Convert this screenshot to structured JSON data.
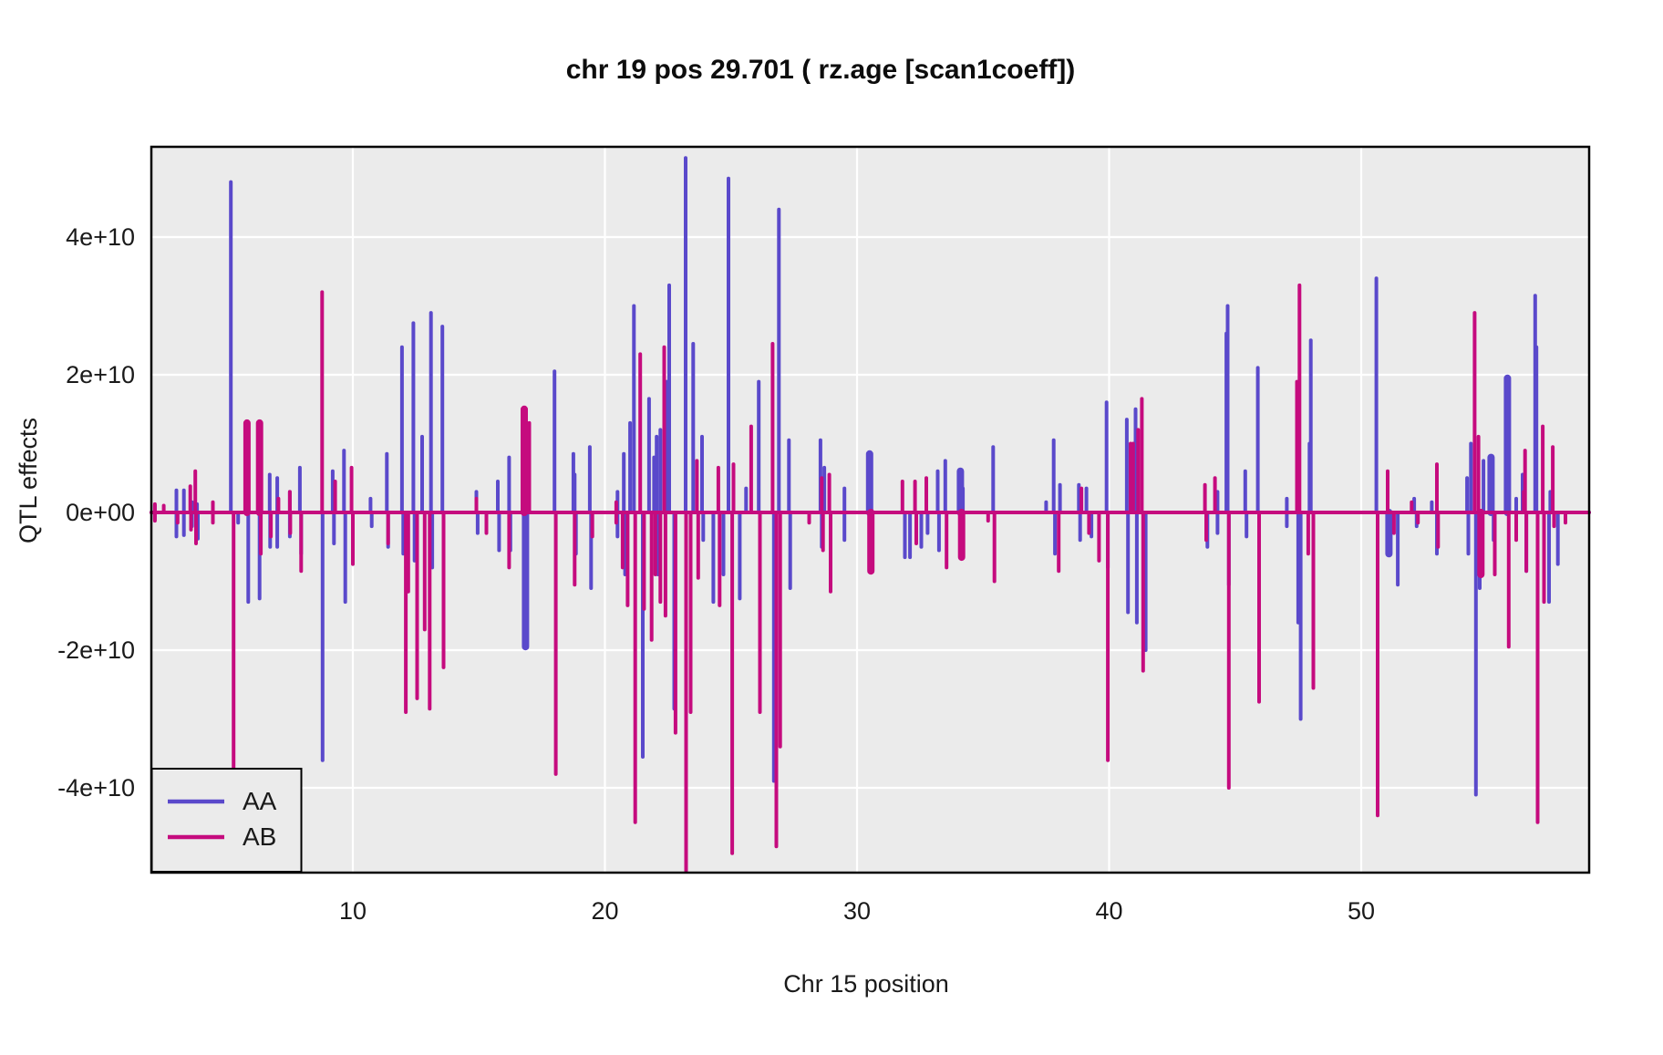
{
  "chart_data": {
    "type": "line",
    "title": "chr 19 pos 29.701 ( rz.age  [scan1coeff])",
    "xlabel": "Chr 15 position",
    "ylabel": "QTL effects",
    "xlim": [
      2.0,
      59.0
    ],
    "ylim_e10": [
      -5.23,
      5.31
    ],
    "x_ticks": [
      10,
      20,
      30,
      40,
      50
    ],
    "y_ticks": [
      {
        "label": "4e+10",
        "value_e10": 4
      },
      {
        "label": "2e+10",
        "value_e10": 2
      },
      {
        "label": "0e+00",
        "value_e10": 0
      },
      {
        "label": "-2e+10",
        "value_e10": -2
      },
      {
        "label": "-4e+10",
        "value_e10": -4
      }
    ],
    "grid": "major gridlines only, white on gray panel",
    "legend_position": "bottom-left inside panel",
    "panel_bg": "#EBEBEB",
    "grid_color": "#FFFFFF",
    "border_color": "#000000",
    "text_color": "#1a1a1a",
    "baseline_e10": 0,
    "series": [
      {
        "name": "AA",
        "color": "#5A49CB",
        "spikes_e10": [
          [
            2.15,
            0.1
          ],
          [
            2.15,
            -0.1
          ],
          [
            3.0,
            0.32
          ],
          [
            3.0,
            -0.35
          ],
          [
            3.3,
            0.32
          ],
          [
            3.3,
            -0.33
          ],
          [
            3.62,
            0.15
          ],
          [
            3.62,
            -0.2
          ],
          [
            3.82,
            0.12
          ],
          [
            3.85,
            -0.38
          ],
          [
            5.16,
            4.8
          ],
          [
            5.45,
            -0.15
          ],
          [
            5.85,
            -1.3
          ],
          [
            6.3,
            -1.25
          ],
          [
            6.7,
            0.55
          ],
          [
            6.72,
            -0.5
          ],
          [
            7.0,
            0.5
          ],
          [
            7.0,
            -0.5
          ],
          [
            7.5,
            0.3
          ],
          [
            7.5,
            -0.35
          ],
          [
            7.9,
            0.65
          ],
          [
            7.95,
            -0.6
          ],
          [
            8.8,
            -3.6
          ],
          [
            9.2,
            0.6
          ],
          [
            9.25,
            -0.45
          ],
          [
            9.65,
            0.9
          ],
          [
            9.7,
            -1.3
          ],
          [
            10.7,
            0.2
          ],
          [
            10.75,
            -0.2
          ],
          [
            11.35,
            0.85
          ],
          [
            11.4,
            -0.5
          ],
          [
            11.95,
            2.4
          ],
          [
            12.0,
            -0.6
          ],
          [
            12.4,
            2.75
          ],
          [
            12.45,
            -0.7
          ],
          [
            12.75,
            1.1
          ],
          [
            13.1,
            2.9
          ],
          [
            13.15,
            -0.8
          ],
          [
            13.55,
            2.7
          ],
          [
            14.9,
            0.3
          ],
          [
            14.95,
            -0.3
          ],
          [
            15.75,
            0.45
          ],
          [
            15.8,
            -0.55
          ],
          [
            16.2,
            0.8
          ],
          [
            16.25,
            -0.55
          ],
          [
            16.85,
            -1.95,
            2
          ],
          [
            18.0,
            2.05
          ],
          [
            18.75,
            0.85
          ],
          [
            18.8,
            0.55
          ],
          [
            18.85,
            -0.6
          ],
          [
            19.4,
            0.95
          ],
          [
            19.45,
            -1.1
          ],
          [
            20.5,
            0.3
          ],
          [
            20.5,
            -0.35
          ],
          [
            20.75,
            0.85
          ],
          [
            20.8,
            -0.9
          ],
          [
            21.0,
            1.3
          ],
          [
            21.15,
            3.0
          ],
          [
            21.5,
            -3.55
          ],
          [
            21.75,
            1.65
          ],
          [
            21.95,
            0.8
          ],
          [
            22.05,
            1.1
          ],
          [
            22.1,
            -0.9
          ],
          [
            22.2,
            1.2
          ],
          [
            22.45,
            1.9
          ],
          [
            22.55,
            3.3
          ],
          [
            22.75,
            -2.85
          ],
          [
            23.2,
            5.15
          ],
          [
            23.5,
            2.45
          ],
          [
            23.85,
            1.1
          ],
          [
            23.9,
            -0.4
          ],
          [
            24.3,
            -1.3
          ],
          [
            24.7,
            -0.9
          ],
          [
            24.9,
            4.85
          ],
          [
            25.35,
            -1.25
          ],
          [
            25.6,
            0.35
          ],
          [
            26.1,
            1.9
          ],
          [
            26.7,
            -3.9
          ],
          [
            26.9,
            4.4
          ],
          [
            27.3,
            1.05
          ],
          [
            27.35,
            -1.1
          ],
          [
            28.55,
            1.05
          ],
          [
            28.6,
            -0.5
          ],
          [
            28.7,
            0.65
          ],
          [
            29.5,
            0.35
          ],
          [
            29.5,
            -0.4
          ],
          [
            30.5,
            0.85,
            2
          ],
          [
            30.6,
            -0.3
          ],
          [
            31.9,
            -0.65
          ],
          [
            32.1,
            -0.65
          ],
          [
            32.55,
            -0.5
          ],
          [
            32.8,
            -0.3
          ],
          [
            33.2,
            0.6
          ],
          [
            33.25,
            -0.55
          ],
          [
            33.5,
            0.75
          ],
          [
            34.1,
            0.6,
            2
          ],
          [
            34.2,
            0.35
          ],
          [
            35.4,
            0.95
          ],
          [
            37.5,
            0.15
          ],
          [
            37.8,
            1.05
          ],
          [
            37.85,
            -0.6
          ],
          [
            38.05,
            0.4
          ],
          [
            38.8,
            0.4
          ],
          [
            38.85,
            -0.4
          ],
          [
            39.1,
            0.35
          ],
          [
            39.3,
            -0.35
          ],
          [
            39.9,
            1.6
          ],
          [
            39.95,
            -0.8
          ],
          [
            40.7,
            1.35
          ],
          [
            40.75,
            -1.45
          ],
          [
            41.05,
            1.5
          ],
          [
            41.1,
            -1.6
          ],
          [
            41.45,
            -2.0
          ],
          [
            43.9,
            -0.5
          ],
          [
            44.3,
            0.3
          ],
          [
            44.3,
            -0.3
          ],
          [
            44.65,
            2.6
          ],
          [
            44.7,
            3.0
          ],
          [
            44.75,
            -1.05
          ],
          [
            45.4,
            0.6
          ],
          [
            45.45,
            -0.35
          ],
          [
            45.9,
            2.1
          ],
          [
            47.05,
            0.2
          ],
          [
            47.05,
            -0.2
          ],
          [
            47.5,
            -1.6
          ],
          [
            47.6,
            -3.0
          ],
          [
            47.95,
            1.0
          ],
          [
            48.0,
            2.5
          ],
          [
            50.6,
            3.4
          ],
          [
            51.1,
            -0.6,
            2
          ],
          [
            51.45,
            -1.05
          ],
          [
            52.1,
            0.2
          ],
          [
            52.2,
            -0.2
          ],
          [
            52.8,
            0.15
          ],
          [
            53.0,
            -0.6
          ],
          [
            54.2,
            0.5
          ],
          [
            54.25,
            -0.6
          ],
          [
            54.35,
            1.0
          ],
          [
            54.55,
            -4.1
          ],
          [
            54.7,
            -1.1
          ],
          [
            54.85,
            0.75
          ],
          [
            55.15,
            0.8,
            2
          ],
          [
            55.25,
            -0.4
          ],
          [
            55.8,
            1.95,
            2
          ],
          [
            56.15,
            0.2
          ],
          [
            56.4,
            0.55
          ],
          [
            56.55,
            -0.85
          ],
          [
            56.9,
            3.15
          ],
          [
            56.95,
            2.4
          ],
          [
            57.45,
            -1.3
          ],
          [
            57.5,
            0.3
          ],
          [
            57.8,
            -0.75
          ]
        ]
      },
      {
        "name": "AB",
        "color": "#C50B7E",
        "spikes_e10": [
          [
            2.15,
            0.12
          ],
          [
            2.15,
            -0.12
          ],
          [
            2.5,
            0.1
          ],
          [
            3.05,
            -0.15
          ],
          [
            3.55,
            0.38
          ],
          [
            3.58,
            -0.25
          ],
          [
            3.75,
            0.6
          ],
          [
            3.78,
            -0.45
          ],
          [
            4.45,
            0.15
          ],
          [
            4.45,
            -0.15
          ],
          [
            5.27,
            -3.9
          ],
          [
            5.8,
            1.3,
            2
          ],
          [
            6.3,
            1.3,
            2
          ],
          [
            6.35,
            -0.6
          ],
          [
            6.75,
            -0.35
          ],
          [
            7.05,
            0.2
          ],
          [
            7.5,
            0.3
          ],
          [
            7.52,
            -0.3
          ],
          [
            7.95,
            -0.85
          ],
          [
            8.78,
            3.2
          ],
          [
            9.3,
            0.45
          ],
          [
            9.95,
            0.65
          ],
          [
            10.0,
            -0.75
          ],
          [
            11.4,
            -0.45
          ],
          [
            12.1,
            -2.9
          ],
          [
            12.2,
            -1.15
          ],
          [
            12.55,
            -2.7
          ],
          [
            12.85,
            -1.7
          ],
          [
            13.05,
            -2.85
          ],
          [
            13.6,
            -2.25
          ],
          [
            14.9,
            0.2
          ],
          [
            15.3,
            -0.3
          ],
          [
            16.2,
            -0.8
          ],
          [
            16.8,
            1.5,
            2
          ],
          [
            17.0,
            1.3
          ],
          [
            18.05,
            -3.8
          ],
          [
            18.8,
            -1.05
          ],
          [
            19.5,
            -0.35
          ],
          [
            20.45,
            0.15
          ],
          [
            20.45,
            -0.15
          ],
          [
            20.7,
            -0.8
          ],
          [
            20.9,
            -1.35
          ],
          [
            21.2,
            -4.5
          ],
          [
            21.4,
            2.3
          ],
          [
            21.55,
            -1.4
          ],
          [
            21.85,
            -1.85
          ],
          [
            22.0,
            -0.9
          ],
          [
            22.2,
            -1.3
          ],
          [
            22.35,
            2.4
          ],
          [
            22.4,
            -1.5
          ],
          [
            22.8,
            -3.2
          ],
          [
            23.22,
            -5.3
          ],
          [
            23.4,
            -2.9
          ],
          [
            23.65,
            0.75
          ],
          [
            23.7,
            -0.95
          ],
          [
            24.5,
            0.65
          ],
          [
            24.55,
            -1.35
          ],
          [
            25.05,
            -4.95
          ],
          [
            25.1,
            0.7
          ],
          [
            25.8,
            1.25
          ],
          [
            26.15,
            -2.9
          ],
          [
            26.65,
            2.45
          ],
          [
            26.8,
            -4.85
          ],
          [
            26.95,
            -3.4
          ],
          [
            28.1,
            -0.15
          ],
          [
            28.6,
            0.5
          ],
          [
            28.65,
            -0.55
          ],
          [
            28.9,
            0.55
          ],
          [
            28.95,
            -1.15
          ],
          [
            30.55,
            -0.85,
            2
          ],
          [
            31.8,
            0.45
          ],
          [
            32.3,
            0.45
          ],
          [
            32.35,
            -0.45
          ],
          [
            32.75,
            0.5
          ],
          [
            33.55,
            -0.8
          ],
          [
            34.15,
            -0.65,
            2
          ],
          [
            35.2,
            -0.12
          ],
          [
            35.45,
            -1.0
          ],
          [
            38.0,
            -0.85
          ],
          [
            38.9,
            0.35
          ],
          [
            39.2,
            -0.3
          ],
          [
            39.6,
            -0.7
          ],
          [
            39.95,
            -3.6
          ],
          [
            40.85,
            1.0
          ],
          [
            40.95,
            1.0
          ],
          [
            41.15,
            1.2
          ],
          [
            41.3,
            1.65
          ],
          [
            41.35,
            -2.3
          ],
          [
            43.8,
            0.4
          ],
          [
            43.85,
            -0.4
          ],
          [
            44.2,
            0.5
          ],
          [
            44.75,
            -4.0
          ],
          [
            45.95,
            -2.75
          ],
          [
            47.45,
            1.9
          ],
          [
            47.55,
            3.3
          ],
          [
            47.9,
            -0.6
          ],
          [
            48.1,
            -2.55
          ],
          [
            50.65,
            -4.4
          ],
          [
            51.05,
            0.6
          ],
          [
            51.3,
            -0.3
          ],
          [
            52.0,
            0.15
          ],
          [
            52.25,
            -0.15
          ],
          [
            53.0,
            0.7
          ],
          [
            53.05,
            -0.5
          ],
          [
            54.5,
            2.9
          ],
          [
            54.65,
            1.1
          ],
          [
            54.75,
            -0.9,
            2
          ],
          [
            55.3,
            -0.9
          ],
          [
            55.85,
            -1.95
          ],
          [
            56.15,
            -0.4
          ],
          [
            56.45,
            0.3
          ],
          [
            56.5,
            0.9
          ],
          [
            56.55,
            -0.85
          ],
          [
            57.0,
            -4.5
          ],
          [
            57.2,
            1.25
          ],
          [
            57.25,
            -1.3
          ],
          [
            57.6,
            0.95
          ],
          [
            57.65,
            -0.2
          ],
          [
            58.1,
            -0.15
          ]
        ]
      }
    ]
  }
}
